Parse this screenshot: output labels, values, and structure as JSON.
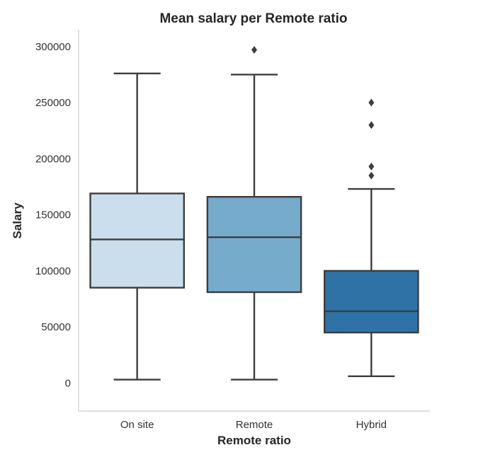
{
  "chart_data": {
    "type": "box",
    "title": "Mean salary per Remote ratio",
    "xlabel": "Remote ratio",
    "ylabel": "Salary",
    "ylim": [
      -25000,
      315000
    ],
    "yticks": [
      0,
      50000,
      100000,
      150000,
      200000,
      250000,
      300000
    ],
    "grid": false,
    "categories": [
      "On site",
      "Remote",
      "Hybrid"
    ],
    "colors": [
      "#cbdeed",
      "#77abcb",
      "#2f72a5"
    ],
    "boxes": [
      {
        "category": "On site",
        "whisker_low": 3000,
        "q1": 85000,
        "median": 128000,
        "q3": 169000,
        "whisker_high": 276000,
        "outliers": []
      },
      {
        "category": "Remote",
        "whisker_low": 3000,
        "q1": 81000,
        "median": 130000,
        "q3": 166000,
        "whisker_high": 275000,
        "outliers": [
          297000
        ]
      },
      {
        "category": "Hybrid",
        "whisker_low": 6000,
        "q1": 45000,
        "median": 64000,
        "q3": 100000,
        "whisker_high": 173000,
        "outliers": [
          185000,
          193000,
          230000,
          250000
        ]
      }
    ]
  }
}
